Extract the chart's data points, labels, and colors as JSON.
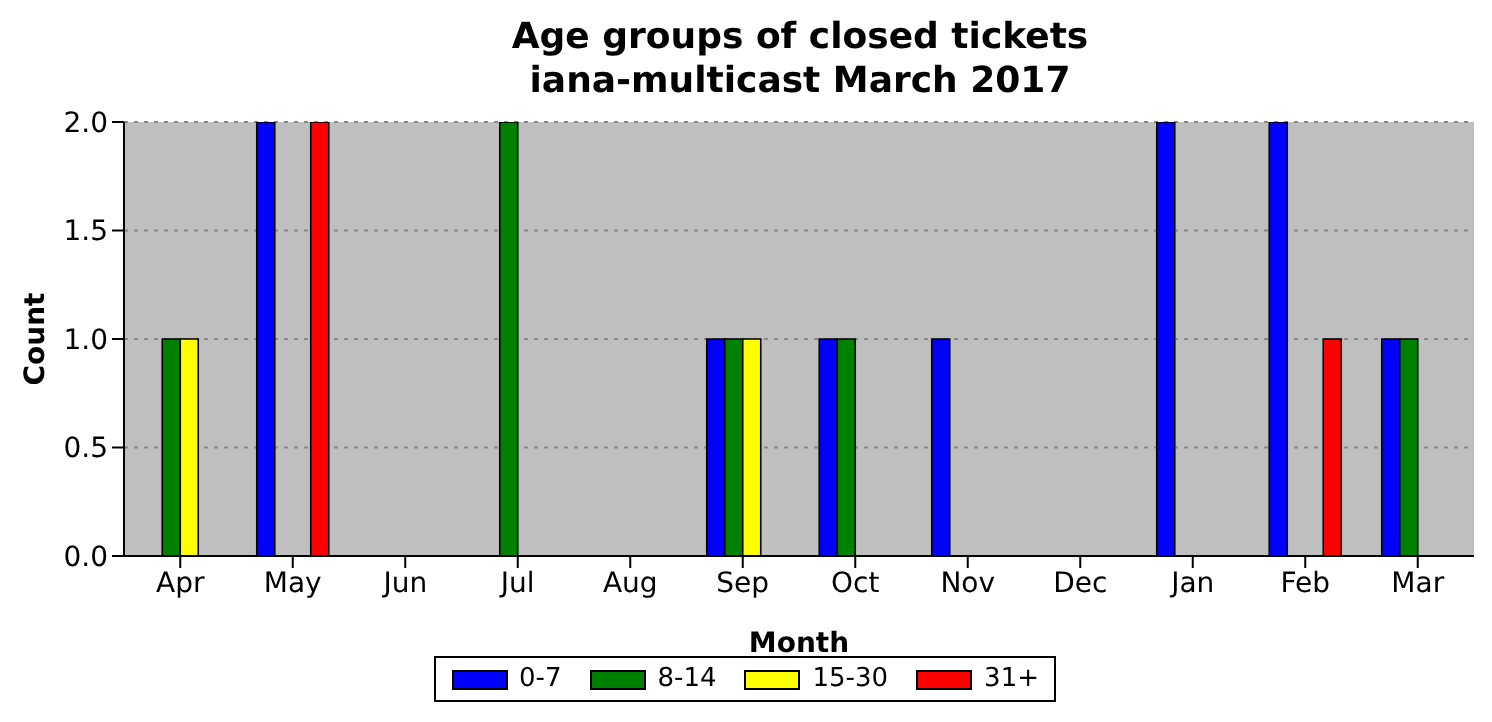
{
  "chart_data": {
    "type": "bar",
    "title": "Age groups of closed tickets",
    "subtitle": "iana-multicast March 2017",
    "xlabel": "Month",
    "ylabel": "Count",
    "categories": [
      "Apr",
      "May",
      "Jun",
      "Jul",
      "Aug",
      "Sep",
      "Oct",
      "Nov",
      "Dec",
      "Jan",
      "Feb",
      "Mar"
    ],
    "series": [
      {
        "name": "0-7",
        "color": "#0000ff",
        "values": [
          0,
          2,
          0,
          0,
          0,
          1,
          1,
          1,
          0,
          2,
          2,
          1
        ]
      },
      {
        "name": "8-14",
        "color": "#008000",
        "values": [
          1,
          0,
          0,
          2,
          0,
          1,
          1,
          0,
          0,
          0,
          0,
          1
        ]
      },
      {
        "name": "15-30",
        "color": "#ffff00",
        "values": [
          1,
          0,
          0,
          0,
          0,
          1,
          0,
          0,
          0,
          0,
          0,
          0
        ]
      },
      {
        "name": "31+",
        "color": "#ff0000",
        "values": [
          0,
          2,
          0,
          0,
          0,
          0,
          0,
          0,
          0,
          0,
          1,
          0
        ]
      }
    ],
    "ylim": [
      0,
      2
    ],
    "yticks": [
      {
        "value": 0,
        "label": "0.0"
      },
      {
        "value": 0.5,
        "label": "0.5"
      },
      {
        "value": 1,
        "label": "1.0"
      },
      {
        "value": 1.5,
        "label": "1.5"
      },
      {
        "value": 2,
        "label": "2.0"
      }
    ],
    "grid": "y",
    "legend": "bottom"
  }
}
